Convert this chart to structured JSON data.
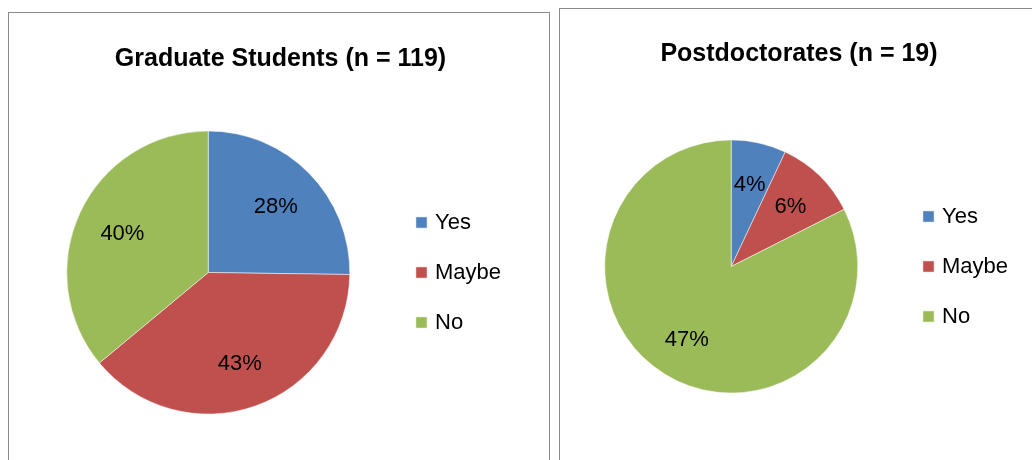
{
  "chart_data": [
    {
      "type": "pie",
      "title": "Graduate Students (n = 119)",
      "categories": [
        "Yes",
        "Maybe",
        "No"
      ],
      "values": [
        28,
        43,
        40
      ],
      "value_labels": [
        "28%",
        "43%",
        "40%"
      ],
      "colors": [
        "#4f81bd",
        "#c0504d",
        "#9bbb59"
      ],
      "legend": "right"
    },
    {
      "type": "pie",
      "title": "Postdoctorates (n = 19)",
      "categories": [
        "Yes",
        "Maybe",
        "No"
      ],
      "values": [
        4,
        6,
        47
      ],
      "value_labels": [
        "4%",
        "6%",
        "47%"
      ],
      "colors": [
        "#4f81bd",
        "#c0504d",
        "#9bbb59"
      ],
      "legend": "right"
    }
  ]
}
